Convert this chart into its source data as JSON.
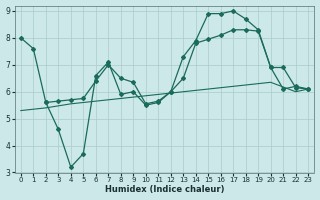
{
  "xlabel": "Humidex (Indice chaleur)",
  "bg_color": "#cce8e8",
  "grid_color": "#aacccc",
  "line_color": "#1a6b5a",
  "xlim": [
    -0.5,
    23.5
  ],
  "ylim": [
    3,
    9.2
  ],
  "yticks": [
    3,
    4,
    5,
    6,
    7,
    8,
    9
  ],
  "xticks": [
    0,
    1,
    2,
    3,
    4,
    5,
    6,
    7,
    8,
    9,
    10,
    11,
    12,
    13,
    14,
    15,
    16,
    17,
    18,
    19,
    20,
    21,
    22,
    23
  ],
  "s1_x": [
    0,
    1,
    2,
    3,
    4,
    5,
    6,
    7,
    8,
    9,
    10,
    11,
    12,
    13,
    14,
    15,
    16,
    17,
    18,
    19,
    20,
    21,
    22,
    23
  ],
  "s1_y": [
    8.0,
    7.6,
    5.6,
    4.6,
    3.2,
    3.7,
    6.6,
    7.1,
    5.9,
    6.0,
    5.5,
    5.6,
    6.0,
    7.3,
    7.9,
    8.9,
    8.9,
    9.0,
    8.7,
    8.3,
    6.9,
    6.1,
    6.2,
    6.1
  ],
  "s2_x": [
    2,
    3,
    4,
    5,
    6,
    7,
    8,
    9,
    10,
    11,
    12,
    13,
    14,
    15,
    16,
    17,
    18,
    19,
    20,
    21,
    22,
    23
  ],
  "s2_y": [
    5.6,
    5.65,
    5.7,
    5.75,
    6.4,
    7.0,
    6.5,
    6.35,
    5.55,
    5.65,
    6.0,
    6.5,
    7.8,
    7.95,
    8.1,
    8.3,
    8.3,
    8.25,
    6.9,
    6.9,
    6.15,
    6.1
  ],
  "s3_x": [
    0,
    2,
    4,
    6,
    8,
    10,
    12,
    14,
    16,
    18,
    20,
    22,
    23
  ],
  "s3_y": [
    5.3,
    5.4,
    5.55,
    5.65,
    5.75,
    5.85,
    5.95,
    6.05,
    6.15,
    6.25,
    6.35,
    6.0,
    6.1
  ]
}
